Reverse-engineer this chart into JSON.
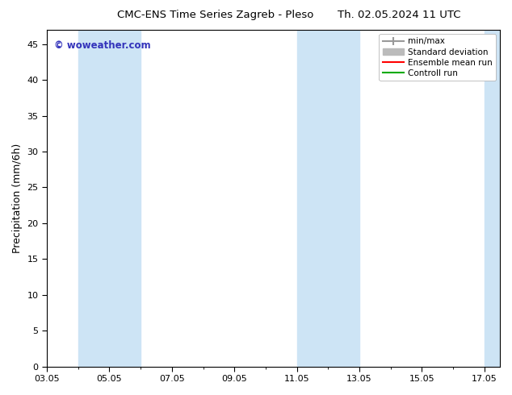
{
  "title_left": "CMC-ENS Time Series Zagreb - Pleso",
  "title_right": "Th. 02.05.2024 11 UTC",
  "ylabel": "Precipitation (mm/6h)",
  "watermark": "© woweather.com",
  "watermark_color": "#3333bb",
  "bg_color": "#ffffff",
  "plot_bg_color": "#ffffff",
  "shade_color": "#cde4f5",
  "xlim": [
    0,
    14.5
  ],
  "ylim": [
    0,
    47
  ],
  "yticks": [
    0,
    5,
    10,
    15,
    20,
    25,
    30,
    35,
    40,
    45
  ],
  "x_tick_positions": [
    0,
    2,
    4,
    6,
    8,
    10,
    12,
    14
  ],
  "x_tick_labels": [
    "03.05",
    "05.05",
    "07.05",
    "09.05",
    "11.05",
    "13.05",
    "15.05",
    "17.05"
  ],
  "shaded_bands": [
    {
      "xmin": 1.0,
      "xmax": 3.0
    },
    {
      "xmin": 8.0,
      "xmax": 10.0
    },
    {
      "xmin": 14.0,
      "xmax": 14.5
    }
  ],
  "legend_items": [
    {
      "label": "min/max",
      "color": "#999999"
    },
    {
      "label": "Standard deviation",
      "color": "#bbbbbb"
    },
    {
      "label": "Ensemble mean run",
      "color": "#ff0000"
    },
    {
      "label": "Controll run",
      "color": "#00aa00"
    }
  ],
  "title_fontsize": 9.5,
  "tick_fontsize": 8,
  "ylabel_fontsize": 9,
  "legend_fontsize": 7.5
}
